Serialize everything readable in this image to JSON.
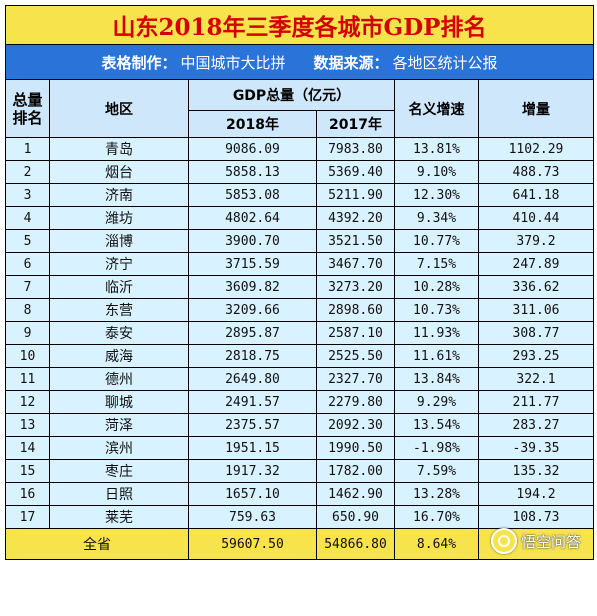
{
  "title": "山东2018年三季度各城市GDP排名",
  "subtitle": {
    "maker_label": "表格制作：",
    "maker_value": "中国城市大比拼",
    "source_label": "数据来源：",
    "source_value": "各地区统计公报"
  },
  "header": {
    "rank": "总量排名",
    "region": "地区",
    "gdp_total": "GDP总量（亿元）",
    "y2018": "2018年",
    "y2017": "2017年",
    "growth": "名义增速",
    "increase": "增量"
  },
  "rows": [
    {
      "rank": "1",
      "city": "青岛",
      "g2018": "9086.09",
      "g2017": "7983.80",
      "growth": "13.81%",
      "inc": "1102.29"
    },
    {
      "rank": "2",
      "city": "烟台",
      "g2018": "5858.13",
      "g2017": "5369.40",
      "growth": "9.10%",
      "inc": "488.73"
    },
    {
      "rank": "3",
      "city": "济南",
      "g2018": "5853.08",
      "g2017": "5211.90",
      "growth": "12.30%",
      "inc": "641.18"
    },
    {
      "rank": "4",
      "city": "潍坊",
      "g2018": "4802.64",
      "g2017": "4392.20",
      "growth": "9.34%",
      "inc": "410.44"
    },
    {
      "rank": "5",
      "city": "淄博",
      "g2018": "3900.70",
      "g2017": "3521.50",
      "growth": "10.77%",
      "inc": "379.2"
    },
    {
      "rank": "6",
      "city": "济宁",
      "g2018": "3715.59",
      "g2017": "3467.70",
      "growth": "7.15%",
      "inc": "247.89"
    },
    {
      "rank": "7",
      "city": "临沂",
      "g2018": "3609.82",
      "g2017": "3273.20",
      "growth": "10.28%",
      "inc": "336.62"
    },
    {
      "rank": "8",
      "city": "东营",
      "g2018": "3209.66",
      "g2017": "2898.60",
      "growth": "10.73%",
      "inc": "311.06"
    },
    {
      "rank": "9",
      "city": "泰安",
      "g2018": "2895.87",
      "g2017": "2587.10",
      "growth": "11.93%",
      "inc": "308.77"
    },
    {
      "rank": "10",
      "city": "威海",
      "g2018": "2818.75",
      "g2017": "2525.50",
      "growth": "11.61%",
      "inc": "293.25"
    },
    {
      "rank": "11",
      "city": "德州",
      "g2018": "2649.80",
      "g2017": "2327.70",
      "growth": "13.84%",
      "inc": "322.1"
    },
    {
      "rank": "12",
      "city": "聊城",
      "g2018": "2491.57",
      "g2017": "2279.80",
      "growth": "9.29%",
      "inc": "211.77"
    },
    {
      "rank": "13",
      "city": "菏泽",
      "g2018": "2375.57",
      "g2017": "2092.30",
      "growth": "13.54%",
      "inc": "283.27"
    },
    {
      "rank": "14",
      "city": "滨州",
      "g2018": "1951.15",
      "g2017": "1990.50",
      "growth": "-1.98%",
      "inc": "-39.35"
    },
    {
      "rank": "15",
      "city": "枣庄",
      "g2018": "1917.32",
      "g2017": "1782.00",
      "growth": "7.59%",
      "inc": "135.32"
    },
    {
      "rank": "16",
      "city": "日照",
      "g2018": "1657.10",
      "g2017": "1462.90",
      "growth": "13.28%",
      "inc": "194.2"
    },
    {
      "rank": "17",
      "city": "莱芜",
      "g2018": "759.63",
      "g2017": "650.90",
      "growth": "16.70%",
      "inc": "108.73"
    }
  ],
  "total": {
    "label": "全省",
    "g2018": "59607.50",
    "g2017": "54866.80",
    "growth": "8.64%",
    "inc": ""
  },
  "watermark": {
    "text": "悟空问答",
    "icon": "wukong-logo-icon"
  }
}
